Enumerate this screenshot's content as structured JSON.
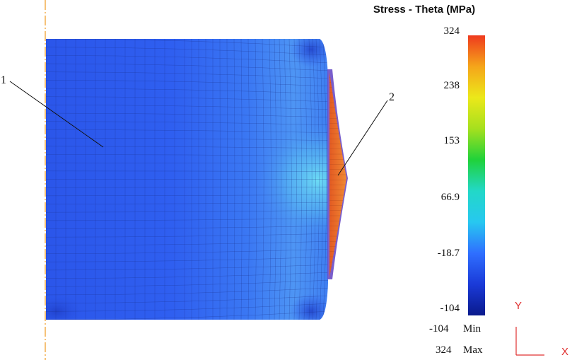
{
  "legend": {
    "title": "Stress - Theta (MPa)",
    "ticks": [
      "324",
      "238",
      "153",
      "66.9",
      "-18.7",
      "-104"
    ],
    "min_value": "-104",
    "min_label": "Min",
    "max_value": "324",
    "max_label": "Max",
    "gradient_colors": [
      "#0a1a8c",
      "#1a3ad8",
      "#2f6fff",
      "#27c8f0",
      "#22d8c8",
      "#20d23a",
      "#a6e01e",
      "#ece81a",
      "#f5a51a",
      "#ef3a1e"
    ]
  },
  "callouts": [
    "1",
    "2"
  ],
  "axes": {
    "y": "Y",
    "x": "X"
  },
  "colors": {
    "mesh_body": "#2f5ef0",
    "mesh_light": "#5a8ff5",
    "hot_spot": "#56c8f2",
    "ring": "#e86a28",
    "axis": "#e03030",
    "centerline": "#f0a030"
  }
}
